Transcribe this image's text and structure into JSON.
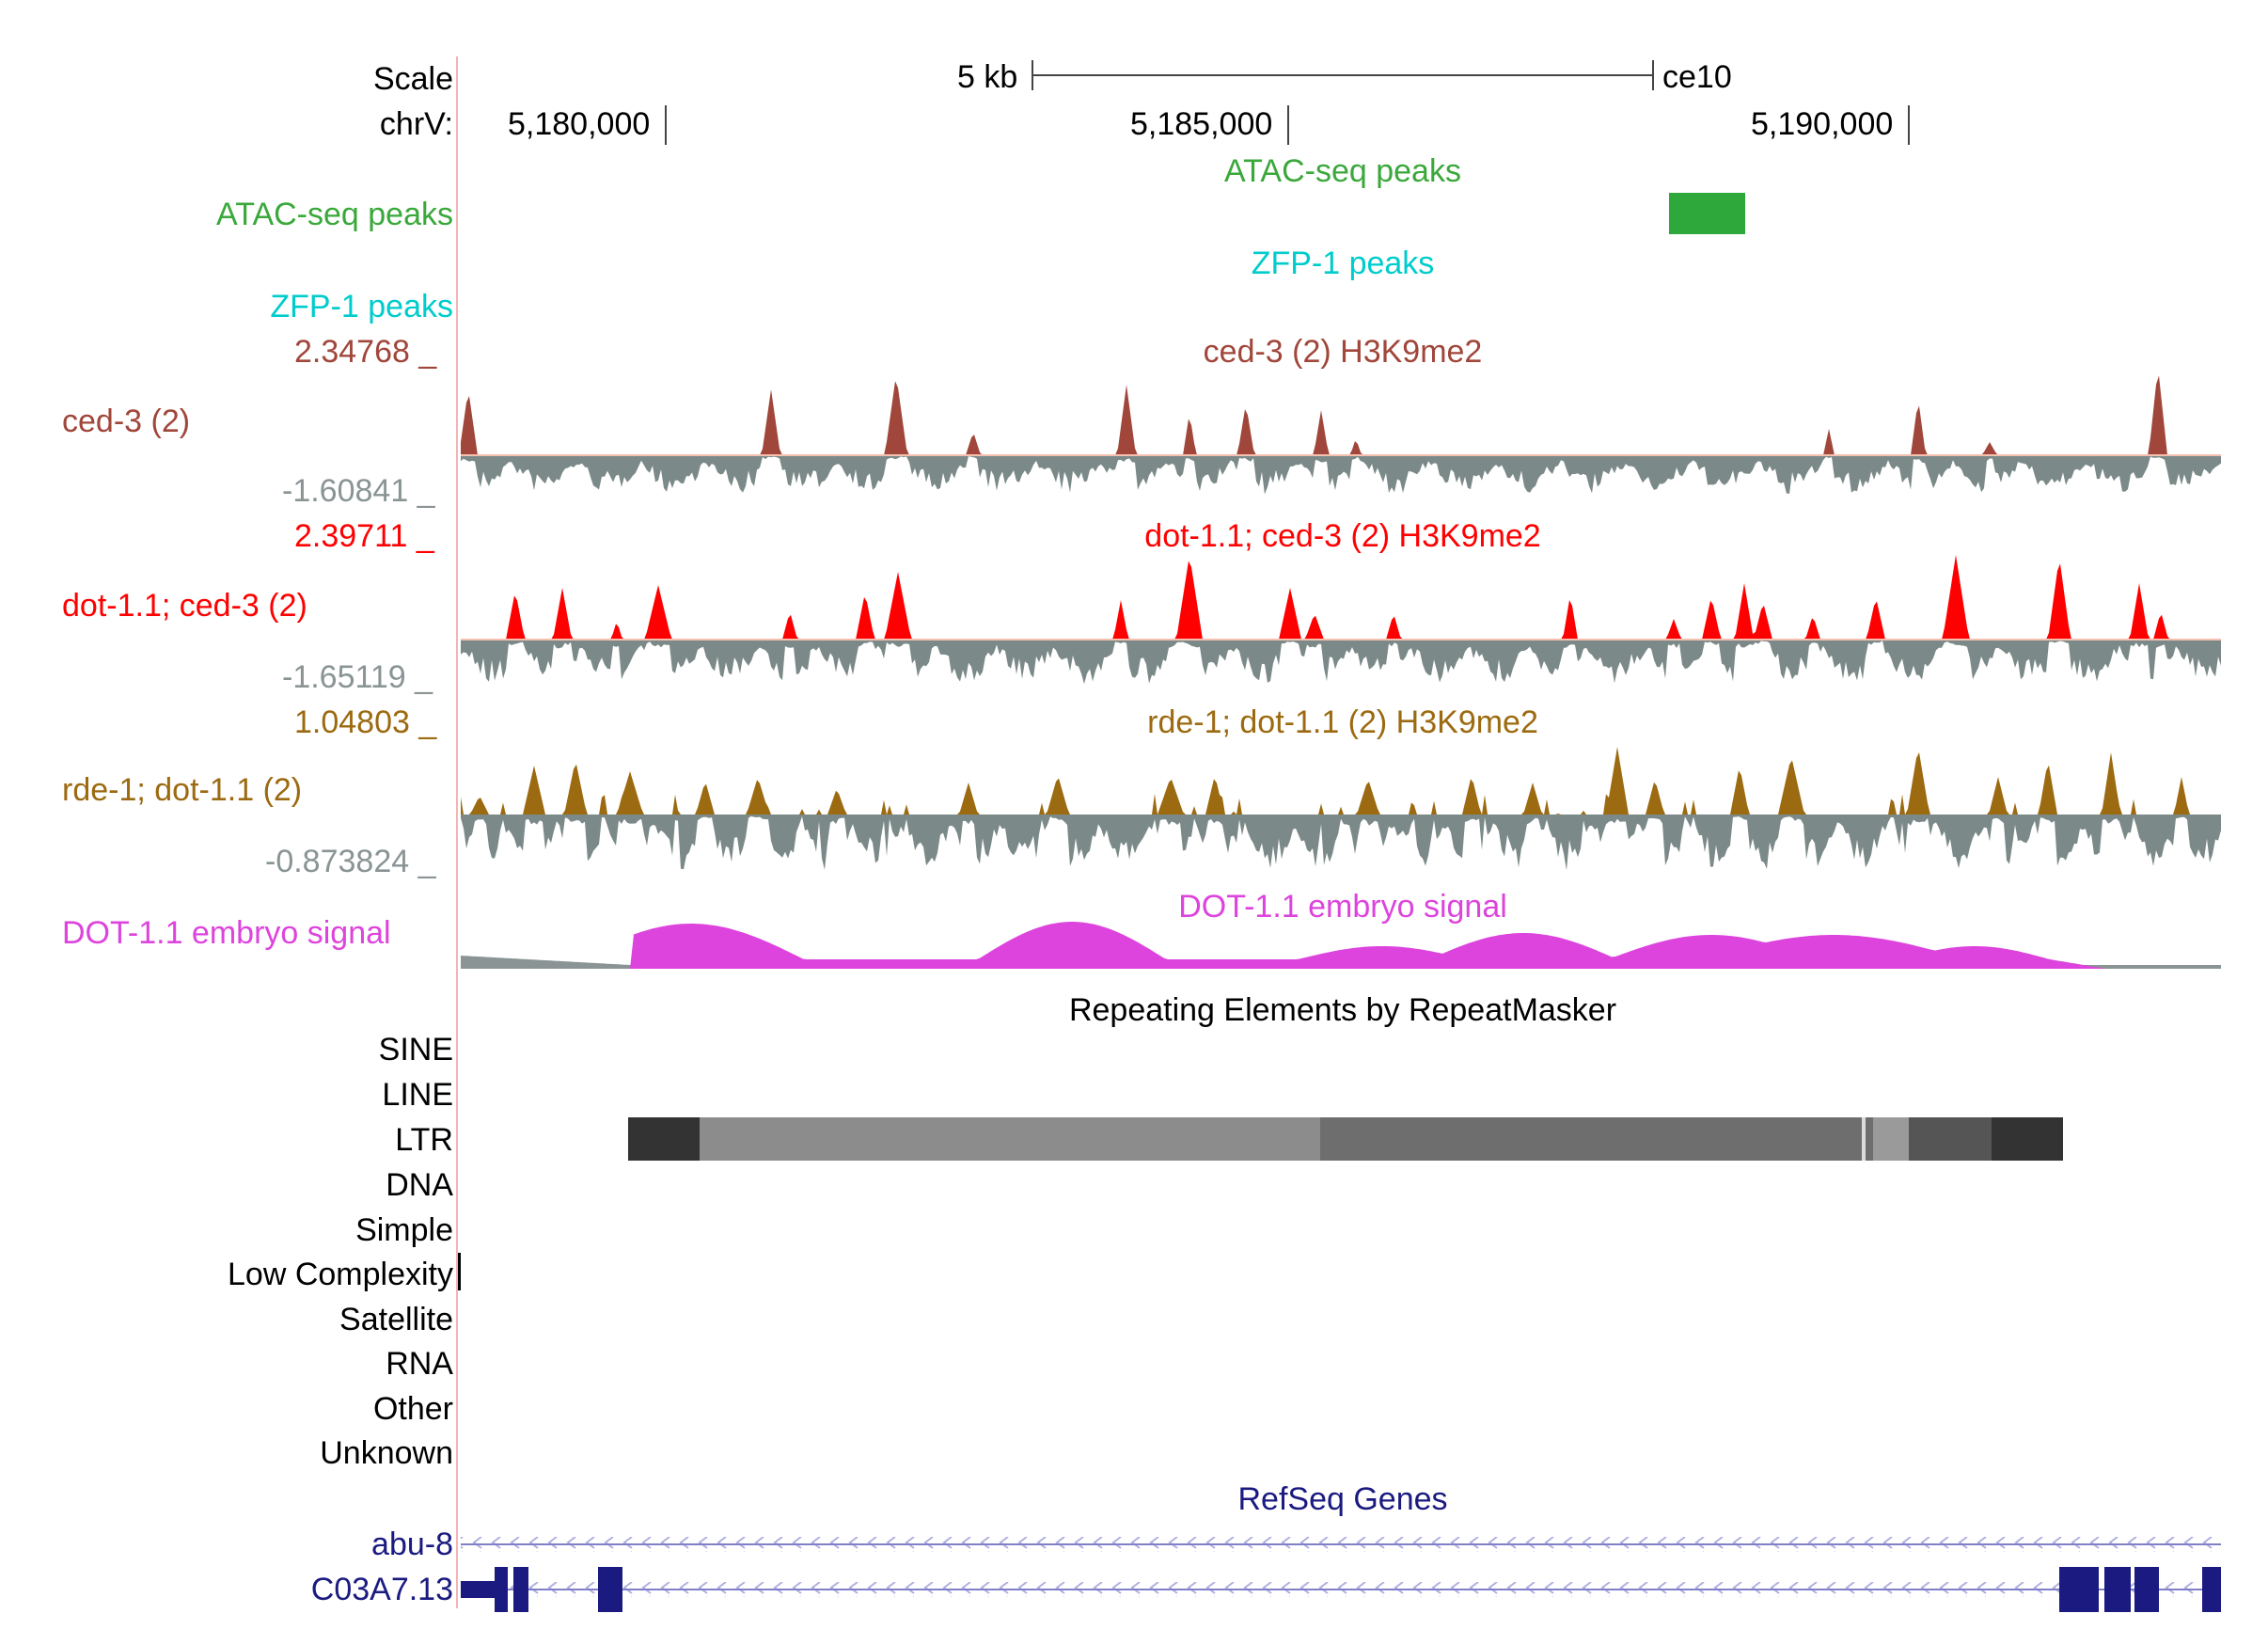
{
  "scale": {
    "label": "Scale",
    "size": "5 kb",
    "assembly": "ce10"
  },
  "coords": {
    "chrom": "chrV:",
    "ticks": [
      "5,180,000",
      "5,185,000",
      "5,190,000"
    ]
  },
  "tracks": {
    "atac": {
      "side_label": "ATAC-seq peaks",
      "title": "ATAC-seq peaks",
      "color": "#3aa83a"
    },
    "zfp1": {
      "side_label": "ZFP-1 peaks",
      "title": "ZFP-1 peaks",
      "color": "#00cccc"
    },
    "ced3": {
      "side_label": "ced-3 (2)",
      "title": "ced-3 (2) H3K9me2",
      "max": "2.34768 _",
      "min": "-1.60841 _",
      "pos_color": "#a0463a",
      "neg_color": "#7b8a88"
    },
    "dot11_ced3": {
      "side_label": "dot-1.1; ced-3 (2)",
      "title": "dot-1.1; ced-3 (2) H3K9me2",
      "max": "2.39711 _",
      "min": "-1.65119 _",
      "pos_color": "#ff0000",
      "neg_color": "#7b8a88"
    },
    "rde1_dot11": {
      "side_label": "rde-1; dot-1.1 (2)",
      "title": "rde-1; dot-1.1 (2) H3K9me2",
      "max": "1.04803 _",
      "min": "-0.873824 _",
      "pos_color": "#9c6a10",
      "neg_color": "#7b8a88"
    },
    "dot11_embryo": {
      "side_label": "DOT-1.1 embryo signal",
      "title": "DOT-1.1 embryo signal",
      "color": "#dd44dd"
    }
  },
  "repeats": {
    "title": "Repeating Elements by RepeatMasker",
    "classes": [
      "SINE",
      "LINE",
      "LTR",
      "DNA",
      "Simple",
      "Low Complexity",
      "Satellite",
      "RNA",
      "Other",
      "Unknown"
    ]
  },
  "refseq": {
    "title": "RefSeq Genes",
    "genes": [
      "abu-8",
      "C03A7.13"
    ],
    "color": "#1a1a80"
  }
}
